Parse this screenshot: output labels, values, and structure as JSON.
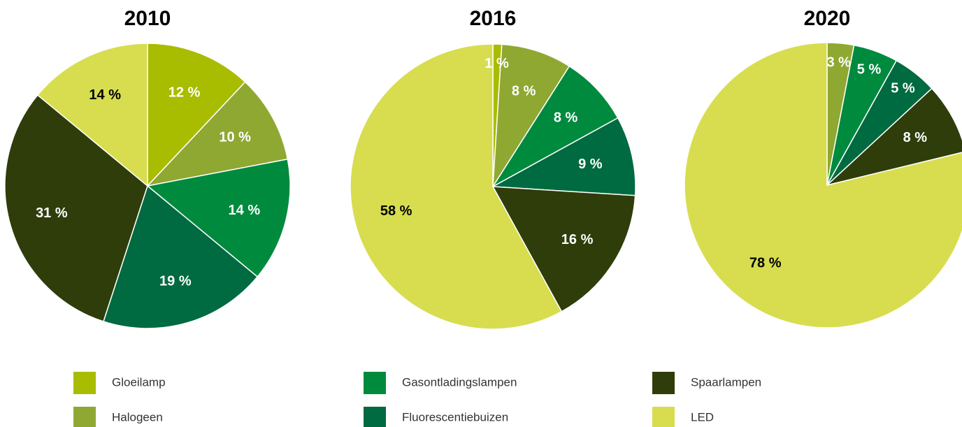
{
  "chart_data": [
    {
      "type": "pie",
      "title": "2010",
      "categories": [
        "Gloeilamp",
        "Halogeen",
        "Gasontladingslampen",
        "Fluorescentiebuizen",
        "Spaarlampen",
        "LED"
      ],
      "values": [
        12,
        10,
        14,
        19,
        31,
        14
      ],
      "value_labels": [
        "12 %",
        "10 %",
        "14 %",
        "19 %",
        "31 %",
        "14 %"
      ],
      "colors": [
        "#a8bc00",
        "#8fa832",
        "#008a3e",
        "#006a40",
        "#2e3d0a",
        "#d7dd4f"
      ]
    },
    {
      "type": "pie",
      "title": "2016",
      "categories": [
        "Gloeilamp",
        "Halogeen",
        "Gasontladingslampen",
        "Fluorescentiebuizen",
        "Spaarlampen",
        "LED"
      ],
      "values": [
        1,
        8,
        8,
        9,
        16,
        58
      ],
      "value_labels": [
        "1 %",
        "8 %",
        "8 %",
        "9 %",
        "16 %",
        "58 %"
      ],
      "colors": [
        "#a8bc00",
        "#8fa832",
        "#008a3e",
        "#006a40",
        "#2e3d0a",
        "#d7dd4f"
      ]
    },
    {
      "type": "pie",
      "title": "2020",
      "categories": [
        "Halogeen",
        "Gasontladingslampen",
        "Fluorescentiebuizen",
        "Spaarlampen",
        "LED"
      ],
      "values": [
        3,
        5,
        5,
        8,
        78
      ],
      "value_labels": [
        "3 %",
        "5 %",
        "5 %",
        "8 %",
        "78 %"
      ],
      "colors": [
        "#8fa832",
        "#008a3e",
        "#006a40",
        "#2e3d0a",
        "#d7dd4f"
      ]
    }
  ]
}
